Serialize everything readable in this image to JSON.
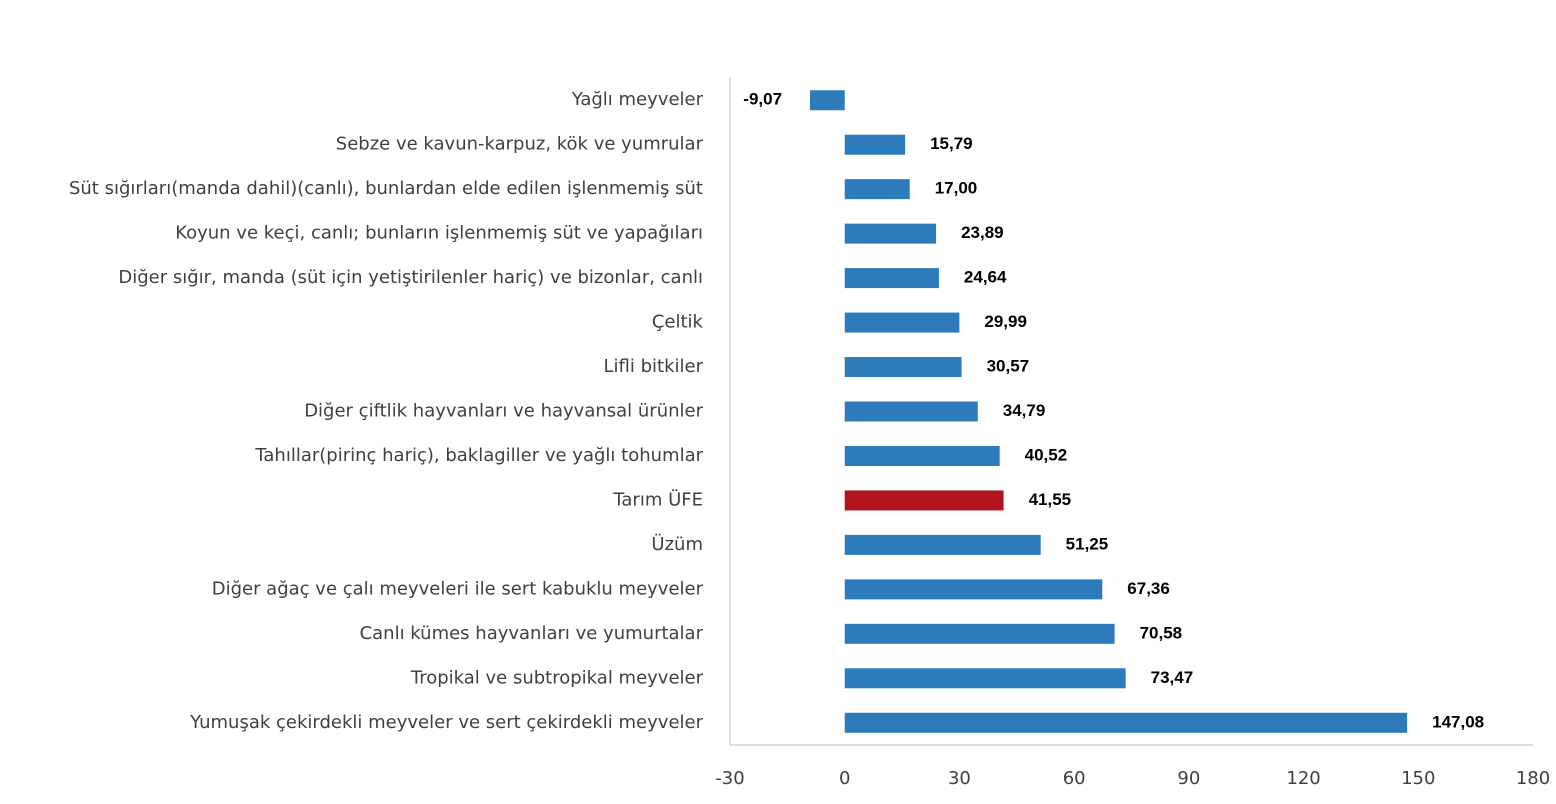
{
  "chart_data": {
    "type": "barh",
    "categories": [
      "Yağlı meyveler",
      "Sebze ve kavun-karpuz, kök ve yumrular",
      "Süt sığırları(manda dahil)(canlı), bunlardan elde edilen işlenmemiş süt",
      "Koyun ve keçi, canlı; bunların işlenmemiş süt ve yapağıları",
      "Diğer sığır, manda (süt için yetiştirilenler hariç) ve bizonlar, canlı",
      "Çeltik",
      "Lifli bitkiler",
      "Diğer çiftlik hayvanları ve hayvansal ürünler",
      "Tahıllar(pirinç hariç), baklagiller ve yağlı tohumlar",
      "Tarım ÜFE",
      "Üzüm",
      "Diğer ağaç ve çalı meyveleri ile sert kabuklu meyveler",
      "Canlı kümes hayvanları ve yumurtalar",
      "Tropikal ve subtropikal meyveler",
      "Yumuşak çekirdekli meyveler ve sert çekirdekli meyveler"
    ],
    "values": [
      -9.07,
      15.79,
      17.0,
      23.89,
      24.64,
      29.99,
      30.57,
      34.79,
      40.52,
      41.55,
      51.25,
      67.36,
      70.58,
      73.47,
      147.08
    ],
    "value_labels": [
      "-9,07",
      "15,79",
      "17,00",
      "23,89",
      "24,64",
      "29,99",
      "30,57",
      "34,79",
      "40,52",
      "41,55",
      "51,25",
      "67,36",
      "70,58",
      "73,47",
      "147,08"
    ],
    "colors": [
      "#2e7bbb",
      "#2e7bbb",
      "#2e7bbb",
      "#2e7bbb",
      "#2e7bbb",
      "#2e7bbb",
      "#2e7bbb",
      "#2e7bbb",
      "#2e7bbb",
      "#b0141d",
      "#2e7bbb",
      "#2e7bbb",
      "#2e7bbb",
      "#2e7bbb",
      "#2e7bbb"
    ],
    "xlim": [
      -30,
      180
    ],
    "xticks": [
      -30,
      0,
      30,
      60,
      90,
      120,
      150,
      180
    ],
    "grid": false
  }
}
